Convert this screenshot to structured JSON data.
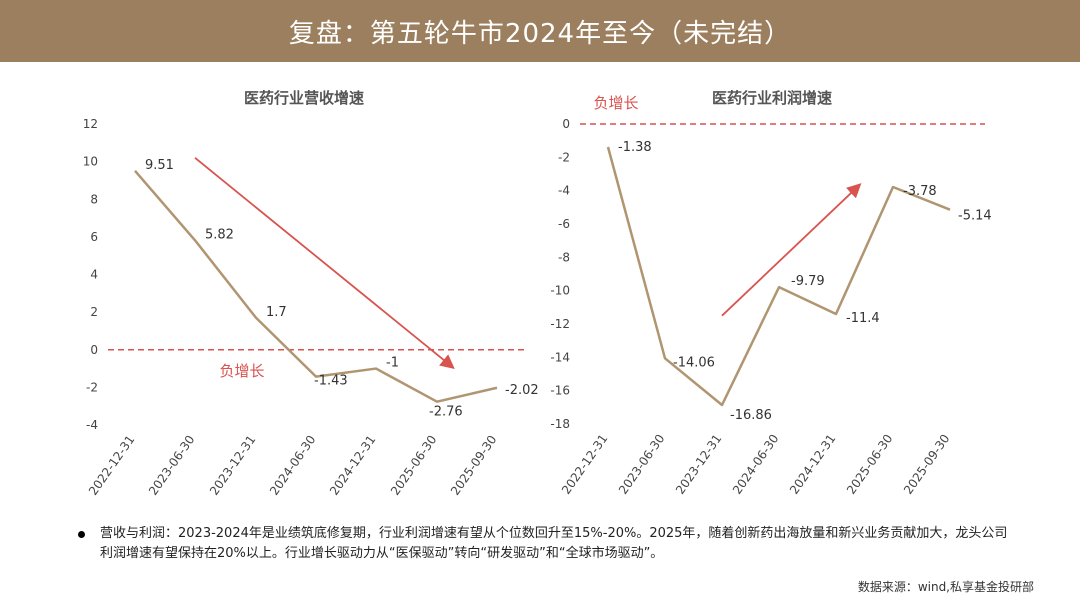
{
  "header": {
    "title": "复盘：第五轮牛市2024年至今（未完结）"
  },
  "colors": {
    "banner": "#9b7f5e",
    "line": "#b09570",
    "arrow": "#d9534f",
    "zero_line": "#d9534f"
  },
  "chart_data": [
    {
      "type": "line",
      "title": "医药行业营收增速",
      "categories": [
        "2022-12-31",
        "2023-06-30",
        "2023-12-31",
        "2024-06-30",
        "2024-12-31",
        "2025-06-30",
        "2025-09-30"
      ],
      "values": [
        9.51,
        5.82,
        1.7,
        -1.43,
        -1,
        -2.76,
        -2.02
      ],
      "data_labels": [
        "9.51",
        "5.82",
        "1.7",
        "-1.43",
        "-1",
        "-2.76",
        "-2.02"
      ],
      "y_ticks": [
        "12",
        "10",
        "8",
        "6",
        "4",
        "2",
        "0",
        "-2",
        "-4"
      ],
      "ylim": [
        -4,
        12
      ],
      "reference_line": {
        "value": 0,
        "label": "负增长"
      },
      "trend_arrow": {
        "direction": "down",
        "from": [
          1,
          10.2
        ],
        "to": [
          5.25,
          -0.9
        ]
      },
      "grid": false
    },
    {
      "type": "line",
      "title": "医药行业利润增速",
      "categories": [
        "2022-12-31",
        "2023-06-30",
        "2023-12-31",
        "2024-06-30",
        "2024-12-31",
        "2025-06-30",
        "2025-09-30"
      ],
      "values": [
        -1.38,
        -14.06,
        -16.86,
        -9.79,
        -11.4,
        -3.78,
        -5.14
      ],
      "data_labels": [
        "-1.38",
        "-14.06",
        "-16.86",
        "-9.79",
        "-11.4",
        "-3.78",
        "-5.14"
      ],
      "y_ticks": [
        "0",
        "-2",
        "-4",
        "-6",
        "-8",
        "-10",
        "-12",
        "-14",
        "-16",
        "-18"
      ],
      "ylim": [
        -18,
        0
      ],
      "reference_line": {
        "value": 0,
        "label": "负增长"
      },
      "trend_arrow": {
        "direction": "up",
        "from": [
          2,
          -11.5
        ],
        "to": [
          4.4,
          -3.7
        ]
      },
      "grid": false
    }
  ],
  "note": {
    "text": "营收与利润：2023-2024年是业绩筑底修复期，行业利润增速有望从个位数回升至15%-20%。2025年，随着创新药出海放量和新兴业务贡献加大，龙头公司利润增速有望保持在20%以上。行业增长驱动力从“医保驱动”转向“研发驱动”和“全球市场驱动”。"
  },
  "source": {
    "text": "数据来源：wind,私享基金投研部"
  }
}
